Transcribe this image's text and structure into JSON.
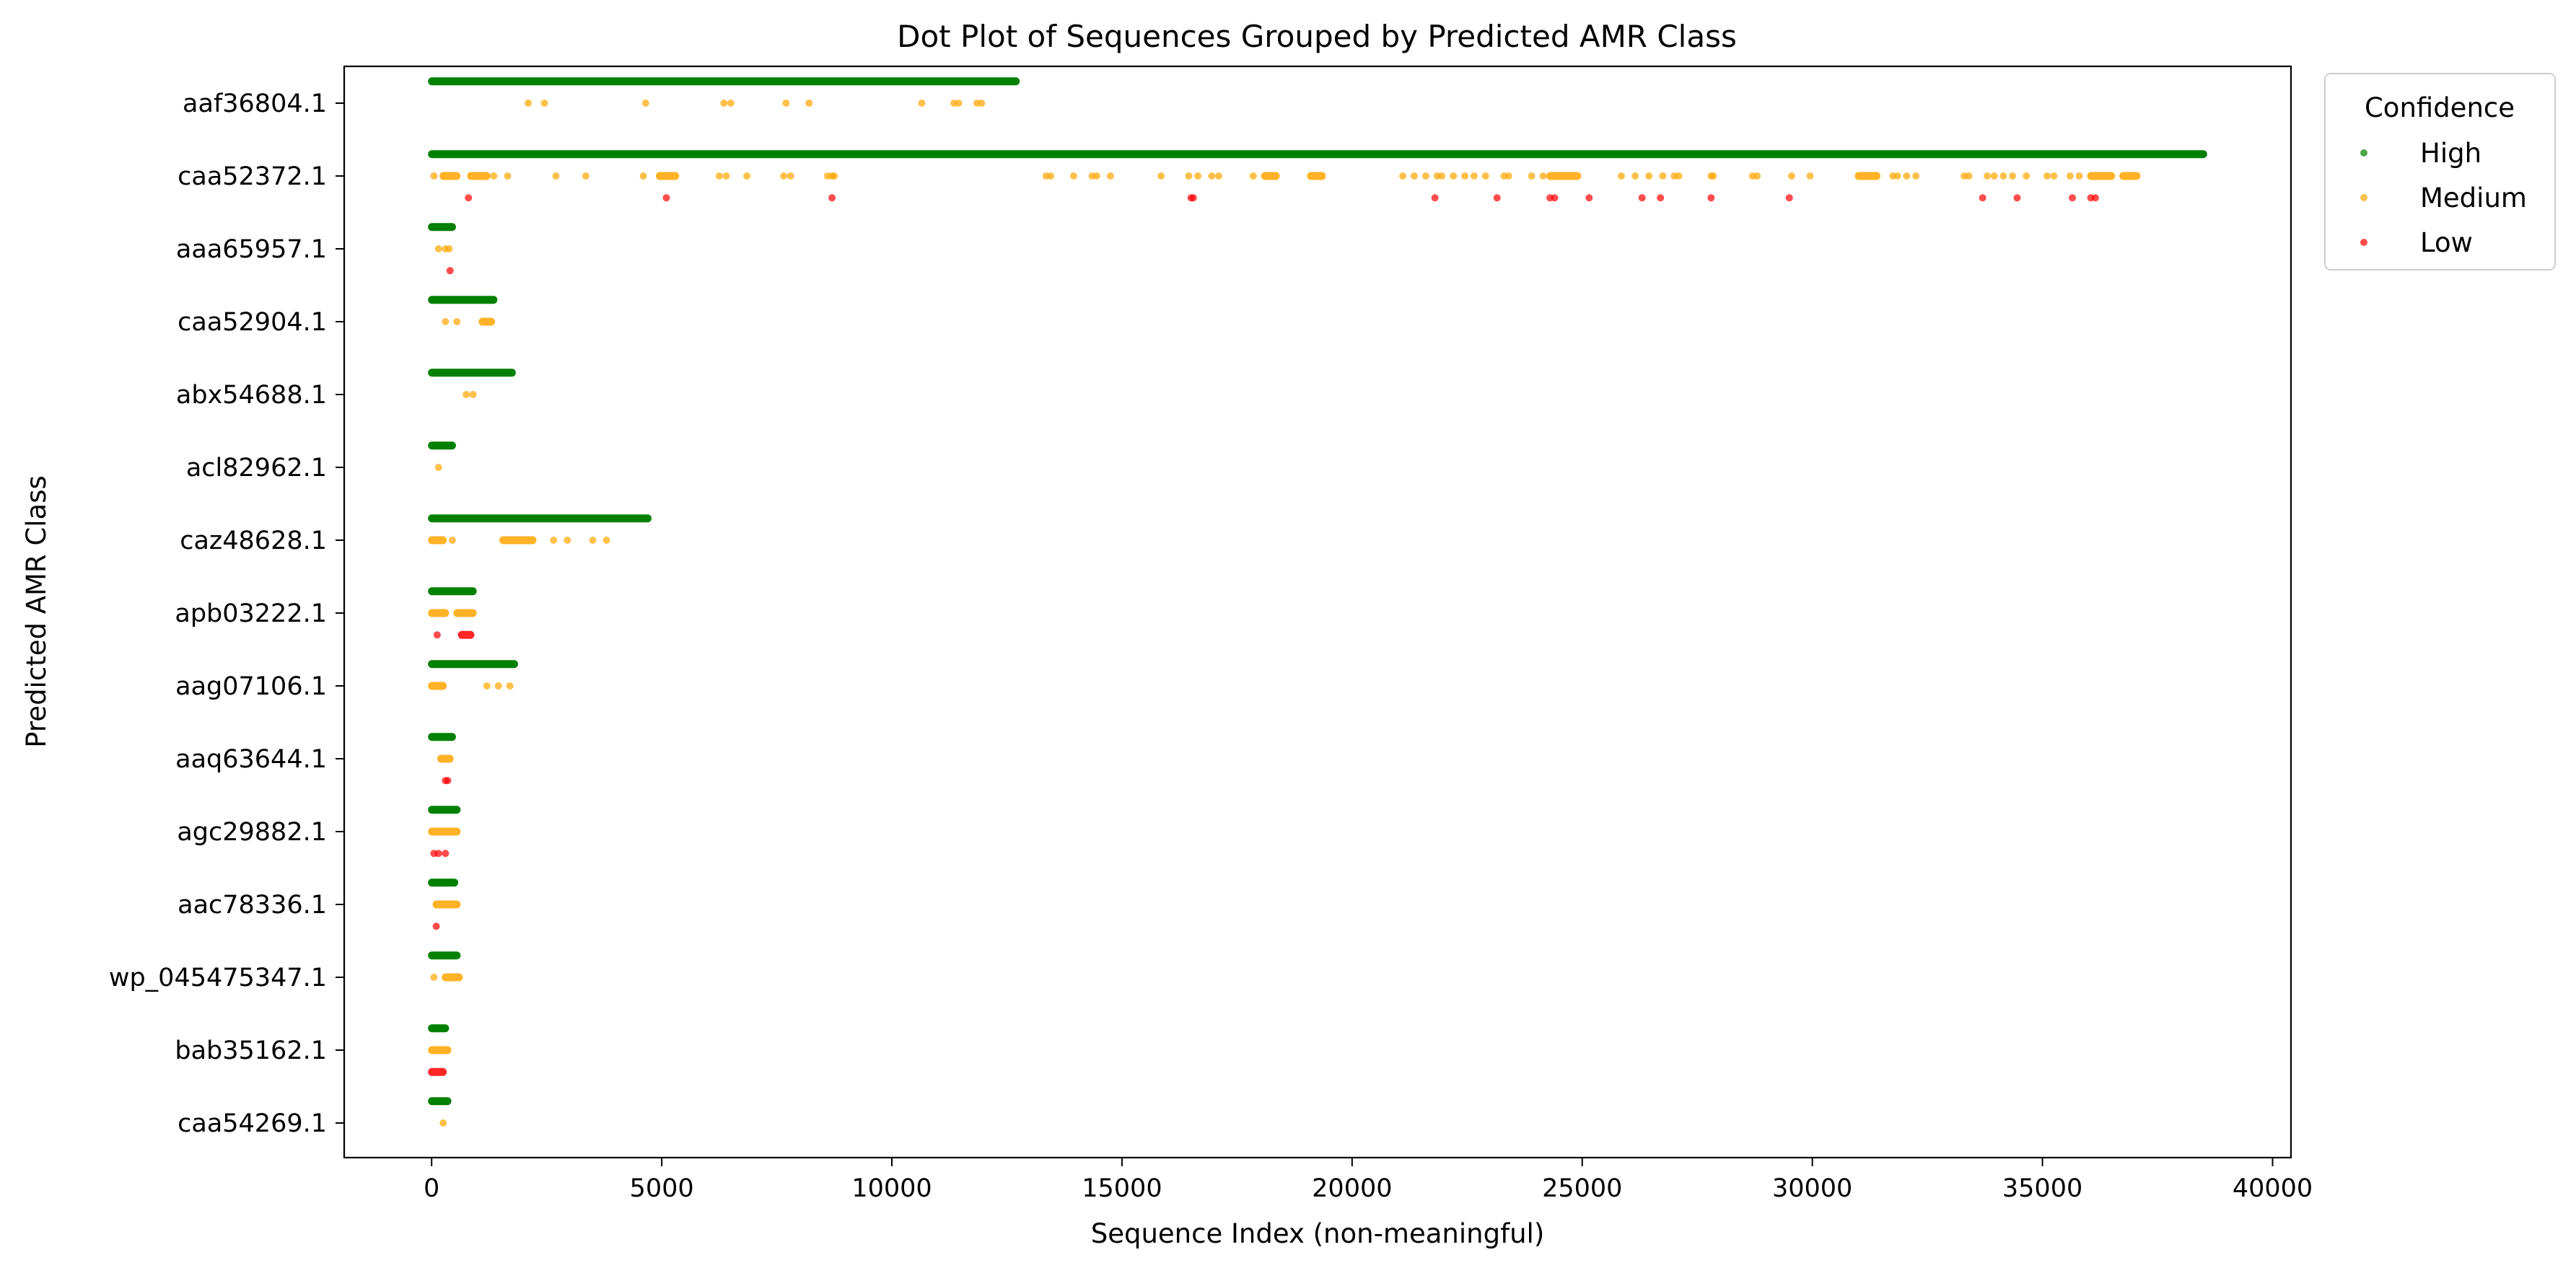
{
  "chart_data": {
    "type": "scatter",
    "title": "Dot Plot of Sequences Grouped by Predicted AMR Class",
    "xlabel": "Sequence Index (non-meaningful)",
    "ylabel": "Predicted AMR Class",
    "xlim": [
      -1900,
      40400
    ],
    "xticks": [
      0,
      5000,
      10000,
      15000,
      20000,
      25000,
      30000,
      35000,
      40000
    ],
    "xtick_labels": [
      "0",
      "5000",
      "10000",
      "15000",
      "20000",
      "25000",
      "30000",
      "35000",
      "40000"
    ],
    "categories": [
      "aaf36804.1",
      "caa52372.1",
      "aaa65957.1",
      "caa52904.1",
      "abx54688.1",
      "acl82962.1",
      "caz48628.1",
      "apb03222.1",
      "aag07106.1",
      "aaq63644.1",
      "agc29882.1",
      "aac78336.1",
      "wp_045475347.1",
      "bab35162.1",
      "caa54269.1"
    ],
    "grid": false,
    "legend": {
      "title": "Confidence",
      "placement": "outside-top-right",
      "entries": [
        {
          "name": "High",
          "color": "#008000"
        },
        {
          "name": "Medium",
          "color": "#ffa500"
        },
        {
          "name": "Low",
          "color": "#ff0000"
        }
      ]
    },
    "series": [
      {
        "name": "High",
        "color": "#008000",
        "offset": -0.3,
        "segments": [
          {
            "category": "aaf36804.1",
            "x_start": 0,
            "x_end": 12700
          },
          {
            "category": "caa52372.1",
            "x_start": 0,
            "x_end": 38500
          },
          {
            "category": "aaa65957.1",
            "x_start": 0,
            "x_end": 450
          },
          {
            "category": "caa52904.1",
            "x_start": 0,
            "x_end": 1350
          },
          {
            "category": "abx54688.1",
            "x_start": 0,
            "x_end": 1750
          },
          {
            "category": "acl82962.1",
            "x_start": 0,
            "x_end": 450
          },
          {
            "category": "caz48628.1",
            "x_start": 0,
            "x_end": 4700
          },
          {
            "category": "apb03222.1",
            "x_start": 0,
            "x_end": 900
          },
          {
            "category": "aag07106.1",
            "x_start": 0,
            "x_end": 1800
          },
          {
            "category": "aaq63644.1",
            "x_start": 0,
            "x_end": 450
          },
          {
            "category": "agc29882.1",
            "x_start": 0,
            "x_end": 550
          },
          {
            "category": "aac78336.1",
            "x_start": 0,
            "x_end": 500
          },
          {
            "category": "wp_045475347.1",
            "x_start": 0,
            "x_end": 550
          },
          {
            "category": "bab35162.1",
            "x_start": 0,
            "x_end": 300
          },
          {
            "category": "caa54269.1",
            "x_start": 0,
            "x_end": 350
          }
        ],
        "points": []
      },
      {
        "name": "Medium",
        "color": "#ffa500",
        "offset": 0,
        "segments": [
          {
            "category": "caa52372.1",
            "x_start": 250,
            "x_end": 550
          },
          {
            "category": "caa52372.1",
            "x_start": 850,
            "x_end": 1200
          },
          {
            "category": "caa52372.1",
            "x_start": 4950,
            "x_end": 5300
          },
          {
            "category": "caa52372.1",
            "x_start": 18100,
            "x_end": 18350
          },
          {
            "category": "caa52372.1",
            "x_start": 19100,
            "x_end": 19350
          },
          {
            "category": "caa52372.1",
            "x_start": 24300,
            "x_end": 24900
          },
          {
            "category": "caa52372.1",
            "x_start": 31000,
            "x_end": 31400
          },
          {
            "category": "caa52372.1",
            "x_start": 36050,
            "x_end": 36500
          },
          {
            "category": "caa52372.1",
            "x_start": 36750,
            "x_end": 37050
          },
          {
            "category": "caa52904.1",
            "x_start": 1100,
            "x_end": 1300
          },
          {
            "category": "caz48628.1",
            "x_start": 0,
            "x_end": 250
          },
          {
            "category": "caz48628.1",
            "x_start": 1550,
            "x_end": 2200
          },
          {
            "category": "apb03222.1",
            "x_start": 0,
            "x_end": 300
          },
          {
            "category": "apb03222.1",
            "x_start": 550,
            "x_end": 900
          },
          {
            "category": "aag07106.1",
            "x_start": 0,
            "x_end": 250
          },
          {
            "category": "aaq63644.1",
            "x_start": 200,
            "x_end": 400
          },
          {
            "category": "agc29882.1",
            "x_start": 0,
            "x_end": 550
          },
          {
            "category": "aac78336.1",
            "x_start": 100,
            "x_end": 550
          },
          {
            "category": "wp_045475347.1",
            "x_start": 300,
            "x_end": 600
          },
          {
            "category": "bab35162.1",
            "x_start": 0,
            "x_end": 350
          }
        ],
        "points": [
          {
            "category": "aaf36804.1",
            "x": [
              2100,
              2450,
              4650,
              6350,
              6500,
              7700,
              8200,
              10650,
              11350,
              11450,
              11850,
              11950
            ]
          },
          {
            "category": "caa52372.1",
            "x": [
              50,
              1350,
              1650,
              2700,
              3350,
              4600,
              6250,
              6400,
              6850,
              7650,
              7800,
              8600,
              8700,
              8750,
              13350,
              13450,
              13950,
              14350,
              14450,
              14750,
              15850,
              16450,
              16650,
              16950,
              17100,
              17850,
              21100,
              21350,
              21600,
              21850,
              21950,
              22200,
              22450,
              22650,
              22900,
              23300,
              23400,
              23900,
              24150,
              25850,
              26150,
              26450,
              26750,
              27000,
              27100,
              27800,
              27850,
              28700,
              28800,
              29550,
              29950,
              31750,
              31850,
              32050,
              32250,
              33300,
              33400,
              33800,
              33950,
              34150,
              34350,
              34650,
              35100,
              35250,
              35600,
              35800
            ]
          },
          {
            "category": "aaa65957.1",
            "x": [
              150,
              300,
              380
            ]
          },
          {
            "category": "caa52904.1",
            "x": [
              300,
              550
            ]
          },
          {
            "category": "abx54688.1",
            "x": [
              750,
              900
            ]
          },
          {
            "category": "acl82962.1",
            "x": [
              150
            ]
          },
          {
            "category": "caz48628.1",
            "x": [
              450,
              2650,
              2950,
              3500,
              3800
            ]
          },
          {
            "category": "aag07106.1",
            "x": [
              1200,
              1450,
              1700
            ]
          },
          {
            "category": "wp_045475347.1",
            "x": [
              50
            ]
          },
          {
            "category": "caa54269.1",
            "x": [
              250
            ]
          }
        ]
      },
      {
        "name": "Low",
        "color": "#ff0000",
        "offset": 0.3,
        "segments": [
          {
            "category": "apb03222.1",
            "x_start": 650,
            "x_end": 850
          },
          {
            "category": "bab35162.1",
            "x_start": 0,
            "x_end": 250
          }
        ],
        "points": [
          {
            "category": "caa52372.1",
            "x": [
              800,
              5100,
              8700,
              16500,
              16550,
              21800,
              23150,
              24300,
              24400,
              25150,
              26300,
              26700,
              27800,
              29500,
              33700,
              34450,
              35650,
              36050,
              36150
            ]
          },
          {
            "category": "aaa65957.1",
            "x": [
              400
            ]
          },
          {
            "category": "apb03222.1",
            "x": [
              120
            ]
          },
          {
            "category": "aaq63644.1",
            "x": [
              300,
              350
            ]
          },
          {
            "category": "agc29882.1",
            "x": [
              50,
              150,
              300
            ]
          },
          {
            "category": "aac78336.1",
            "x": [
              100
            ]
          }
        ]
      }
    ]
  }
}
